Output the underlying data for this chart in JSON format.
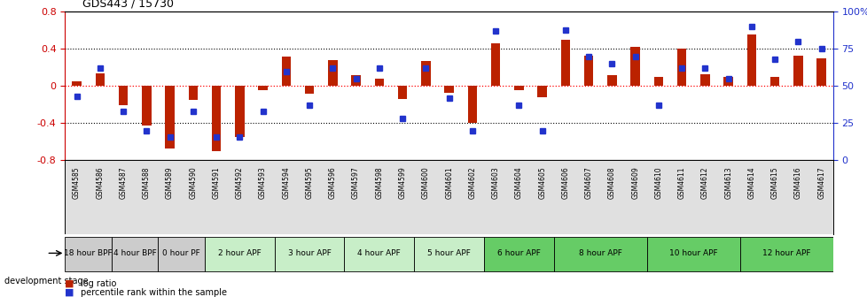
{
  "title": "GDS443 / 15730",
  "samples": [
    "GSM4585",
    "GSM4586",
    "GSM4587",
    "GSM4588",
    "GSM4589",
    "GSM4590",
    "GSM4591",
    "GSM4592",
    "GSM4593",
    "GSM4594",
    "GSM4595",
    "GSM4596",
    "GSM4597",
    "GSM4598",
    "GSM4599",
    "GSM4600",
    "GSM4601",
    "GSM4602",
    "GSM4603",
    "GSM4604",
    "GSM4605",
    "GSM4606",
    "GSM4607",
    "GSM4608",
    "GSM4609",
    "GSM4610",
    "GSM4611",
    "GSM4612",
    "GSM4613",
    "GSM4614",
    "GSM4615",
    "GSM4616",
    "GSM4617"
  ],
  "log_ratio": [
    0.05,
    0.14,
    -0.21,
    -0.42,
    -0.67,
    -0.15,
    -0.7,
    -0.55,
    -0.04,
    0.32,
    -0.08,
    0.28,
    0.12,
    0.08,
    -0.14,
    0.27,
    -0.07,
    -0.4,
    0.46,
    -0.04,
    -0.12,
    0.5,
    0.33,
    0.12,
    0.42,
    0.1,
    0.4,
    0.13,
    0.1,
    0.56,
    0.1,
    0.33,
    0.3
  ],
  "percentile": [
    43,
    62,
    33,
    20,
    16,
    33,
    16,
    16,
    33,
    60,
    37,
    62,
    55,
    62,
    28,
    62,
    42,
    20,
    87,
    37,
    20,
    88,
    70,
    65,
    70,
    37,
    62,
    62,
    55,
    90,
    68,
    80,
    75
  ],
  "stages": [
    {
      "label": "18 hour BPF",
      "start": 0,
      "end": 1,
      "color": "#cccccc"
    },
    {
      "label": "4 hour BPF",
      "start": 2,
      "end": 3,
      "color": "#cccccc"
    },
    {
      "label": "0 hour PF",
      "start": 4,
      "end": 5,
      "color": "#cccccc"
    },
    {
      "label": "2 hour APF",
      "start": 6,
      "end": 8,
      "color": "#c8eec8"
    },
    {
      "label": "3 hour APF",
      "start": 9,
      "end": 11,
      "color": "#c8eec8"
    },
    {
      "label": "4 hour APF",
      "start": 12,
      "end": 14,
      "color": "#c8eec8"
    },
    {
      "label": "5 hour APF",
      "start": 15,
      "end": 17,
      "color": "#c8eec8"
    },
    {
      "label": "6 hour APF",
      "start": 18,
      "end": 20,
      "color": "#66cc66"
    },
    {
      "label": "8 hour APF",
      "start": 21,
      "end": 24,
      "color": "#66cc66"
    },
    {
      "label": "10 hour APF",
      "start": 25,
      "end": 28,
      "color": "#66cc66"
    },
    {
      "label": "12 hour APF",
      "start": 29,
      "end": 32,
      "color": "#66cc66"
    }
  ],
  "ylim_left": [
    -0.8,
    0.8
  ],
  "ylim_right": [
    0,
    100
  ],
  "bar_color": "#bb2200",
  "dot_color": "#2233cc",
  "bar_width": 0.4,
  "dot_size": 4
}
